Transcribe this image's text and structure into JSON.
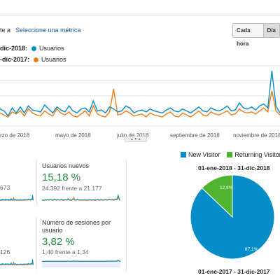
{
  "header": {
    "metric_label_fragment": "te a",
    "select_metric_link": "Seleccione una métrica",
    "granularity_buttons": [
      "Cada hora",
      "Día"
    ],
    "active_granularity": "Día"
  },
  "legend": [
    {
      "range_fragment": "dic-2018:",
      "series": "Usuarios",
      "color": "#058dc7"
    },
    {
      "range_fragment": "-dic-2017:",
      "series": "Usuarios",
      "color": "#ed7e17"
    }
  ],
  "chart_data": {
    "type": "line",
    "x_tick_labels": [
      "rzo de 2018",
      "mayo de 2018",
      "julio de 2018",
      "septiembre de 2018",
      "noviembre de 2018"
    ],
    "grid": true,
    "series": [
      {
        "name": "Usuarios",
        "color": "#058dc7",
        "values": [
          34,
          30,
          20,
          36,
          26,
          38,
          26,
          40,
          32,
          30,
          28,
          42,
          34,
          26,
          38,
          32,
          28,
          40,
          30,
          26,
          34,
          36,
          28,
          50,
          30,
          32,
          26,
          38,
          34,
          28,
          30,
          40,
          36,
          26,
          30,
          32,
          28,
          34,
          30,
          28,
          26,
          32,
          36,
          30,
          28,
          34,
          30,
          26,
          32,
          38,
          30,
          28,
          36,
          32,
          30,
          34,
          40,
          30,
          32,
          46,
          36,
          34,
          38,
          32,
          40,
          44,
          36,
          110,
          40,
          26
        ]
      },
      {
        "name": "Usuarios",
        "color": "#ed7e17",
        "values": [
          26,
          22,
          18,
          28,
          24,
          30,
          20,
          34,
          26,
          22,
          20,
          30,
          24,
          20,
          34,
          26,
          22,
          28,
          20,
          18,
          24,
          30,
          20,
          40,
          24,
          20,
          18,
          28,
          74,
          22,
          24,
          30,
          26,
          20,
          22,
          24,
          18,
          26,
          22,
          20,
          18,
          24,
          28,
          20,
          18,
          26,
          22,
          18,
          24,
          30,
          22,
          20,
          28,
          24,
          22,
          26,
          30,
          22,
          24,
          34,
          28,
          26,
          28,
          24,
          30,
          36,
          28,
          70,
          30,
          22
        ]
      }
    ]
  },
  "cards": [
    {
      "partial_number": "673"
    },
    {
      "title": "Usuarios nuevos",
      "value": "15,18 %",
      "compare": "24.392 frente a 21.177"
    },
    {
      "partial_number": "126"
    },
    {
      "title_line1": "Número de sesiones por",
      "title_line2": "usuario",
      "value": "3,82 %",
      "compare": "1,40 frente a 1,34"
    }
  ],
  "pie_chart": {
    "legend": [
      {
        "label": "New Visitor",
        "color": "#058dc7"
      },
      {
        "label": "Returning Visitor",
        "color": "#50b432"
      }
    ],
    "top_label": "01-ene-2018 - 31-dic-2018",
    "bottom_label": "01-ene-2017 - 31-dic-2017",
    "slices": [
      {
        "label": "87,1%",
        "value": 87.1,
        "color": "#058dc7"
      },
      {
        "label": "12,9%",
        "value": 12.9,
        "color": "#50b432"
      }
    ]
  }
}
